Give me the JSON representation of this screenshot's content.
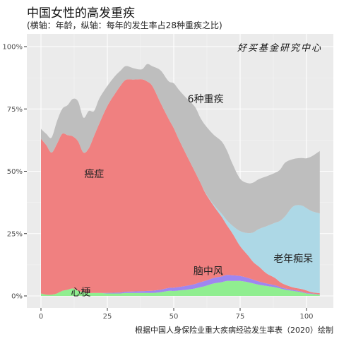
{
  "title": "中国女性的高发重疾",
  "subtitle": "(横轴：年龄，纵轴：每年的发生率占28种重疾之比)",
  "caption": "根据中国人身保险业重大疾病经验发生率表（2020）绘制",
  "watermark": "好买基金研究中心",
  "colors": {
    "panel": "#ebebeb",
    "grid_major": "#ffffff",
    "heart": "#90ee90",
    "stroke": "#9f86f0",
    "cancer": "#f08080",
    "dementia": "#add8e6",
    "other": "#bebebe"
  },
  "chart_data": {
    "type": "area",
    "stacked": true,
    "title": "中国女性的高发重疾",
    "subtitle": "(横轴：年龄，纵轴：每年的发生率占28种重疾之比)",
    "xlabel": "",
    "ylabel": "",
    "xlim": [
      0,
      105
    ],
    "ylim": [
      0,
      1
    ],
    "x_ticks": [
      0,
      25,
      50,
      75,
      100
    ],
    "x_tick_labels": [
      "0",
      "25",
      "50",
      "75",
      "100"
    ],
    "y_ticks": [
      0,
      0.25,
      0.5,
      0.75,
      1
    ],
    "y_tick_labels": [
      "0%",
      "25%",
      "50%",
      "75%",
      "100%"
    ],
    "grid": true,
    "x": [
      0,
      2,
      4,
      6,
      8,
      10,
      12,
      14,
      16,
      18,
      20,
      22,
      25,
      28,
      30,
      32,
      35,
      38,
      40,
      42,
      45,
      48,
      50,
      52,
      55,
      58,
      60,
      62,
      65,
      68,
      70,
      72,
      75,
      78,
      80,
      82,
      85,
      88,
      90,
      92,
      95,
      98,
      100,
      102,
      105
    ],
    "series": [
      {
        "name": "心梗",
        "values": [
          0.01,
          0.005,
          0.005,
          0.01,
          0.02,
          0.025,
          0.03,
          0.02,
          0.015,
          0.012,
          0.012,
          0.012,
          0.01,
          0.01,
          0.01,
          0.012,
          0.012,
          0.012,
          0.012,
          0.012,
          0.015,
          0.02,
          0.02,
          0.022,
          0.025,
          0.03,
          0.035,
          0.04,
          0.05,
          0.055,
          0.06,
          0.06,
          0.06,
          0.055,
          0.05,
          0.045,
          0.04,
          0.035,
          0.03,
          0.025,
          0.02,
          0.015,
          0.01,
          0.008,
          0.005
        ]
      },
      {
        "name": "脑中风",
        "values": [
          0.0,
          0.0,
          0.0,
          0.0,
          0.0,
          0.0,
          0.0,
          0.0,
          0.0,
          0.0,
          0.0,
          0.0,
          0.002,
          0.003,
          0.004,
          0.005,
          0.006,
          0.007,
          0.008,
          0.009,
          0.01,
          0.012,
          0.013,
          0.014,
          0.016,
          0.018,
          0.02,
          0.021,
          0.022,
          0.023,
          0.024,
          0.023,
          0.02,
          0.017,
          0.015,
          0.013,
          0.01,
          0.008,
          0.006,
          0.005,
          0.004,
          0.003,
          0.002,
          0.002,
          0.001
        ]
      },
      {
        "name": "癌症",
        "values": [
          0.62,
          0.6,
          0.57,
          0.6,
          0.63,
          0.62,
          0.61,
          0.6,
          0.56,
          0.58,
          0.63,
          0.68,
          0.75,
          0.8,
          0.83,
          0.85,
          0.85,
          0.85,
          0.84,
          0.82,
          0.75,
          0.68,
          0.64,
          0.59,
          0.52,
          0.45,
          0.4,
          0.35,
          0.29,
          0.24,
          0.2,
          0.17,
          0.12,
          0.09,
          0.07,
          0.06,
          0.04,
          0.03,
          0.02,
          0.015,
          0.01,
          0.01,
          0.01,
          0.005,
          0.005
        ]
      },
      {
        "name": "老年痴呆",
        "values": [
          0.0,
          0.0,
          0.0,
          0.0,
          0.0,
          0.0,
          0.0,
          0.0,
          0.0,
          0.0,
          0.0,
          0.0,
          0.0,
          0.0,
          0.0,
          0.0,
          0.0,
          0.0,
          0.0,
          0.0,
          0.0,
          0.0,
          0.0,
          0.0,
          0.0,
          0.0,
          0.0,
          0.002,
          0.005,
          0.012,
          0.02,
          0.03,
          0.06,
          0.09,
          0.12,
          0.15,
          0.19,
          0.22,
          0.245,
          0.275,
          0.325,
          0.335,
          0.33,
          0.325,
          0.32
        ]
      },
      {
        "name": "6种重疾",
        "values": [
          0.04,
          0.045,
          0.06,
          0.09,
          0.1,
          0.12,
          0.15,
          0.16,
          0.14,
          0.15,
          0.1,
          0.1,
          0.08,
          0.07,
          0.06,
          0.055,
          0.045,
          0.04,
          0.07,
          0.08,
          0.13,
          0.15,
          0.18,
          0.2,
          0.23,
          0.26,
          0.26,
          0.27,
          0.28,
          0.29,
          0.28,
          0.25,
          0.21,
          0.2,
          0.2,
          0.2,
          0.2,
          0.2,
          0.205,
          0.215,
          0.19,
          0.19,
          0.2,
          0.22,
          0.25
        ]
      }
    ],
    "annotations": [
      {
        "text": "心梗",
        "x": 15,
        "y": 0.015
      },
      {
        "text": "脑中风",
        "x": 63,
        "y": 0.1
      },
      {
        "text": "癌症",
        "x": 20,
        "y": 0.49
      },
      {
        "text": "老年痴呆",
        "x": 95,
        "y": 0.15
      },
      {
        "text": "6种重疾",
        "x": 62,
        "y": 0.79
      }
    ]
  }
}
